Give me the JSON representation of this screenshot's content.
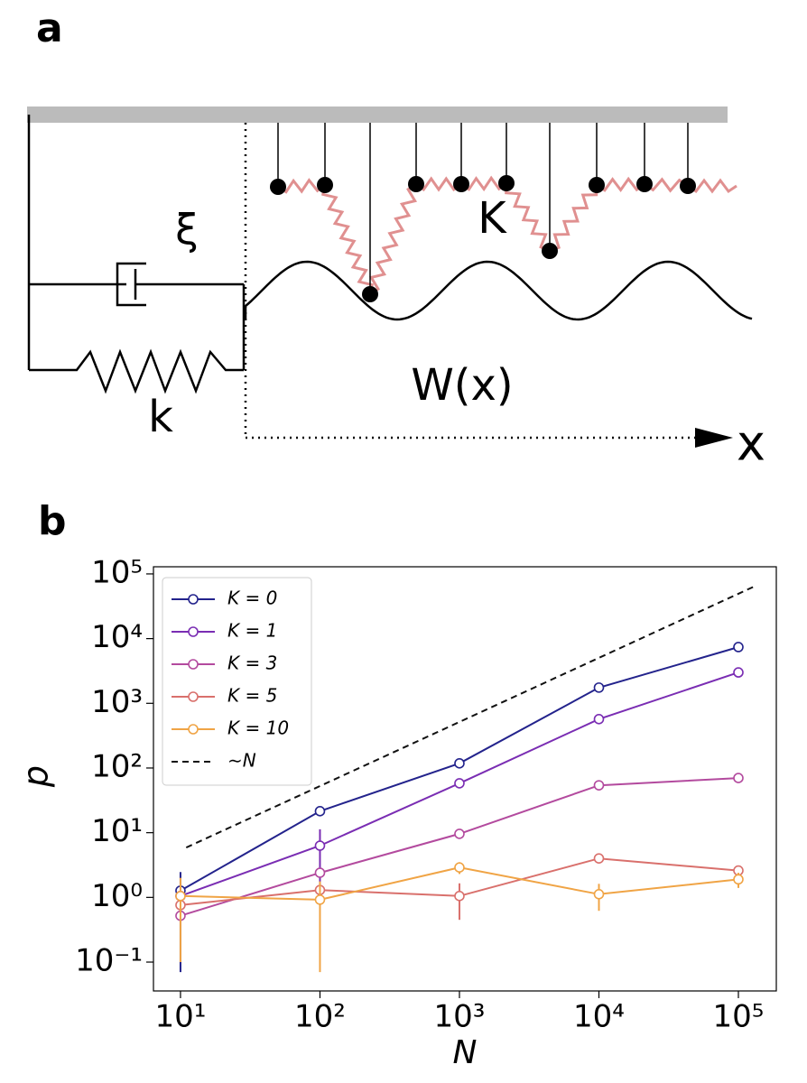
{
  "diagram": {
    "panel_label": "a",
    "labels": {
      "xi": "ξ",
      "coupling": "K",
      "potential": "W(x)",
      "stiffness": "k",
      "axis": "x"
    }
  },
  "chart_data": {
    "type": "line",
    "panel_label": "b",
    "xlabel": "N",
    "ylabel": "p",
    "log_x": true,
    "log_y": true,
    "xlim": [
      6.4,
      187000
    ],
    "ylim": [
      0.0358,
      129000
    ],
    "xticks": [
      {
        "value": 10,
        "label": "10¹"
      },
      {
        "value": 100,
        "label": "10²"
      },
      {
        "value": 1000,
        "label": "10³"
      },
      {
        "value": 10000,
        "label": "10⁴"
      },
      {
        "value": 100000,
        "label": "10⁵"
      }
    ],
    "yticks": [
      {
        "value": 0.1,
        "label": "10⁻¹"
      },
      {
        "value": 1,
        "label": "10⁰"
      },
      {
        "value": 10,
        "label": "10¹"
      },
      {
        "value": 100,
        "label": "10²"
      },
      {
        "value": 1000,
        "label": "10³"
      },
      {
        "value": 10000,
        "label": "10⁴"
      },
      {
        "value": 100000,
        "label": "10⁵"
      }
    ],
    "legend": "upper left",
    "series": [
      {
        "name": "K = 0",
        "color": "#23238c",
        "x": [
          10,
          100,
          1000,
          10000,
          100000
        ],
        "values": [
          1.27,
          21.5,
          118,
          1750,
          7400
        ],
        "errors": [
          1.2,
          3,
          0,
          0,
          0
        ]
      },
      {
        "name": "K = 1",
        "color": "#7a2db3",
        "x": [
          10,
          100,
          1000,
          10000,
          100000
        ],
        "values": [
          1.05,
          6.3,
          58,
          570,
          3000
        ],
        "errors": [
          0,
          5,
          0,
          0,
          0
        ]
      },
      {
        "name": "K = 3",
        "color": "#b34a9e",
        "x": [
          10,
          100,
          1000,
          10000,
          100000
        ],
        "values": [
          0.52,
          2.4,
          9.6,
          54,
          70
        ],
        "errors": [
          0,
          0,
          0,
          0,
          0
        ]
      },
      {
        "name": "K = 5",
        "color": "#d9706c",
        "x": [
          10,
          100,
          1000,
          10000,
          100000
        ],
        "values": [
          0.76,
          1.3,
          1.05,
          4.0,
          2.6
        ],
        "errors": [
          0,
          0,
          0.6,
          0,
          0.5
        ]
      },
      {
        "name": "K = 10",
        "color": "#f0a445",
        "x": [
          10,
          100,
          1000,
          10000,
          100000
        ],
        "values": [
          1.05,
          0.92,
          2.9,
          1.12,
          1.9
        ],
        "errors": [
          0.95,
          0.85,
          0.6,
          0.5,
          0.5
        ]
      },
      {
        "name": "∼N",
        "color": "#111111",
        "dashed": true,
        "markers": false,
        "x": [
          11,
          130000
        ],
        "values": [
          5.9,
          64000
        ]
      }
    ]
  }
}
